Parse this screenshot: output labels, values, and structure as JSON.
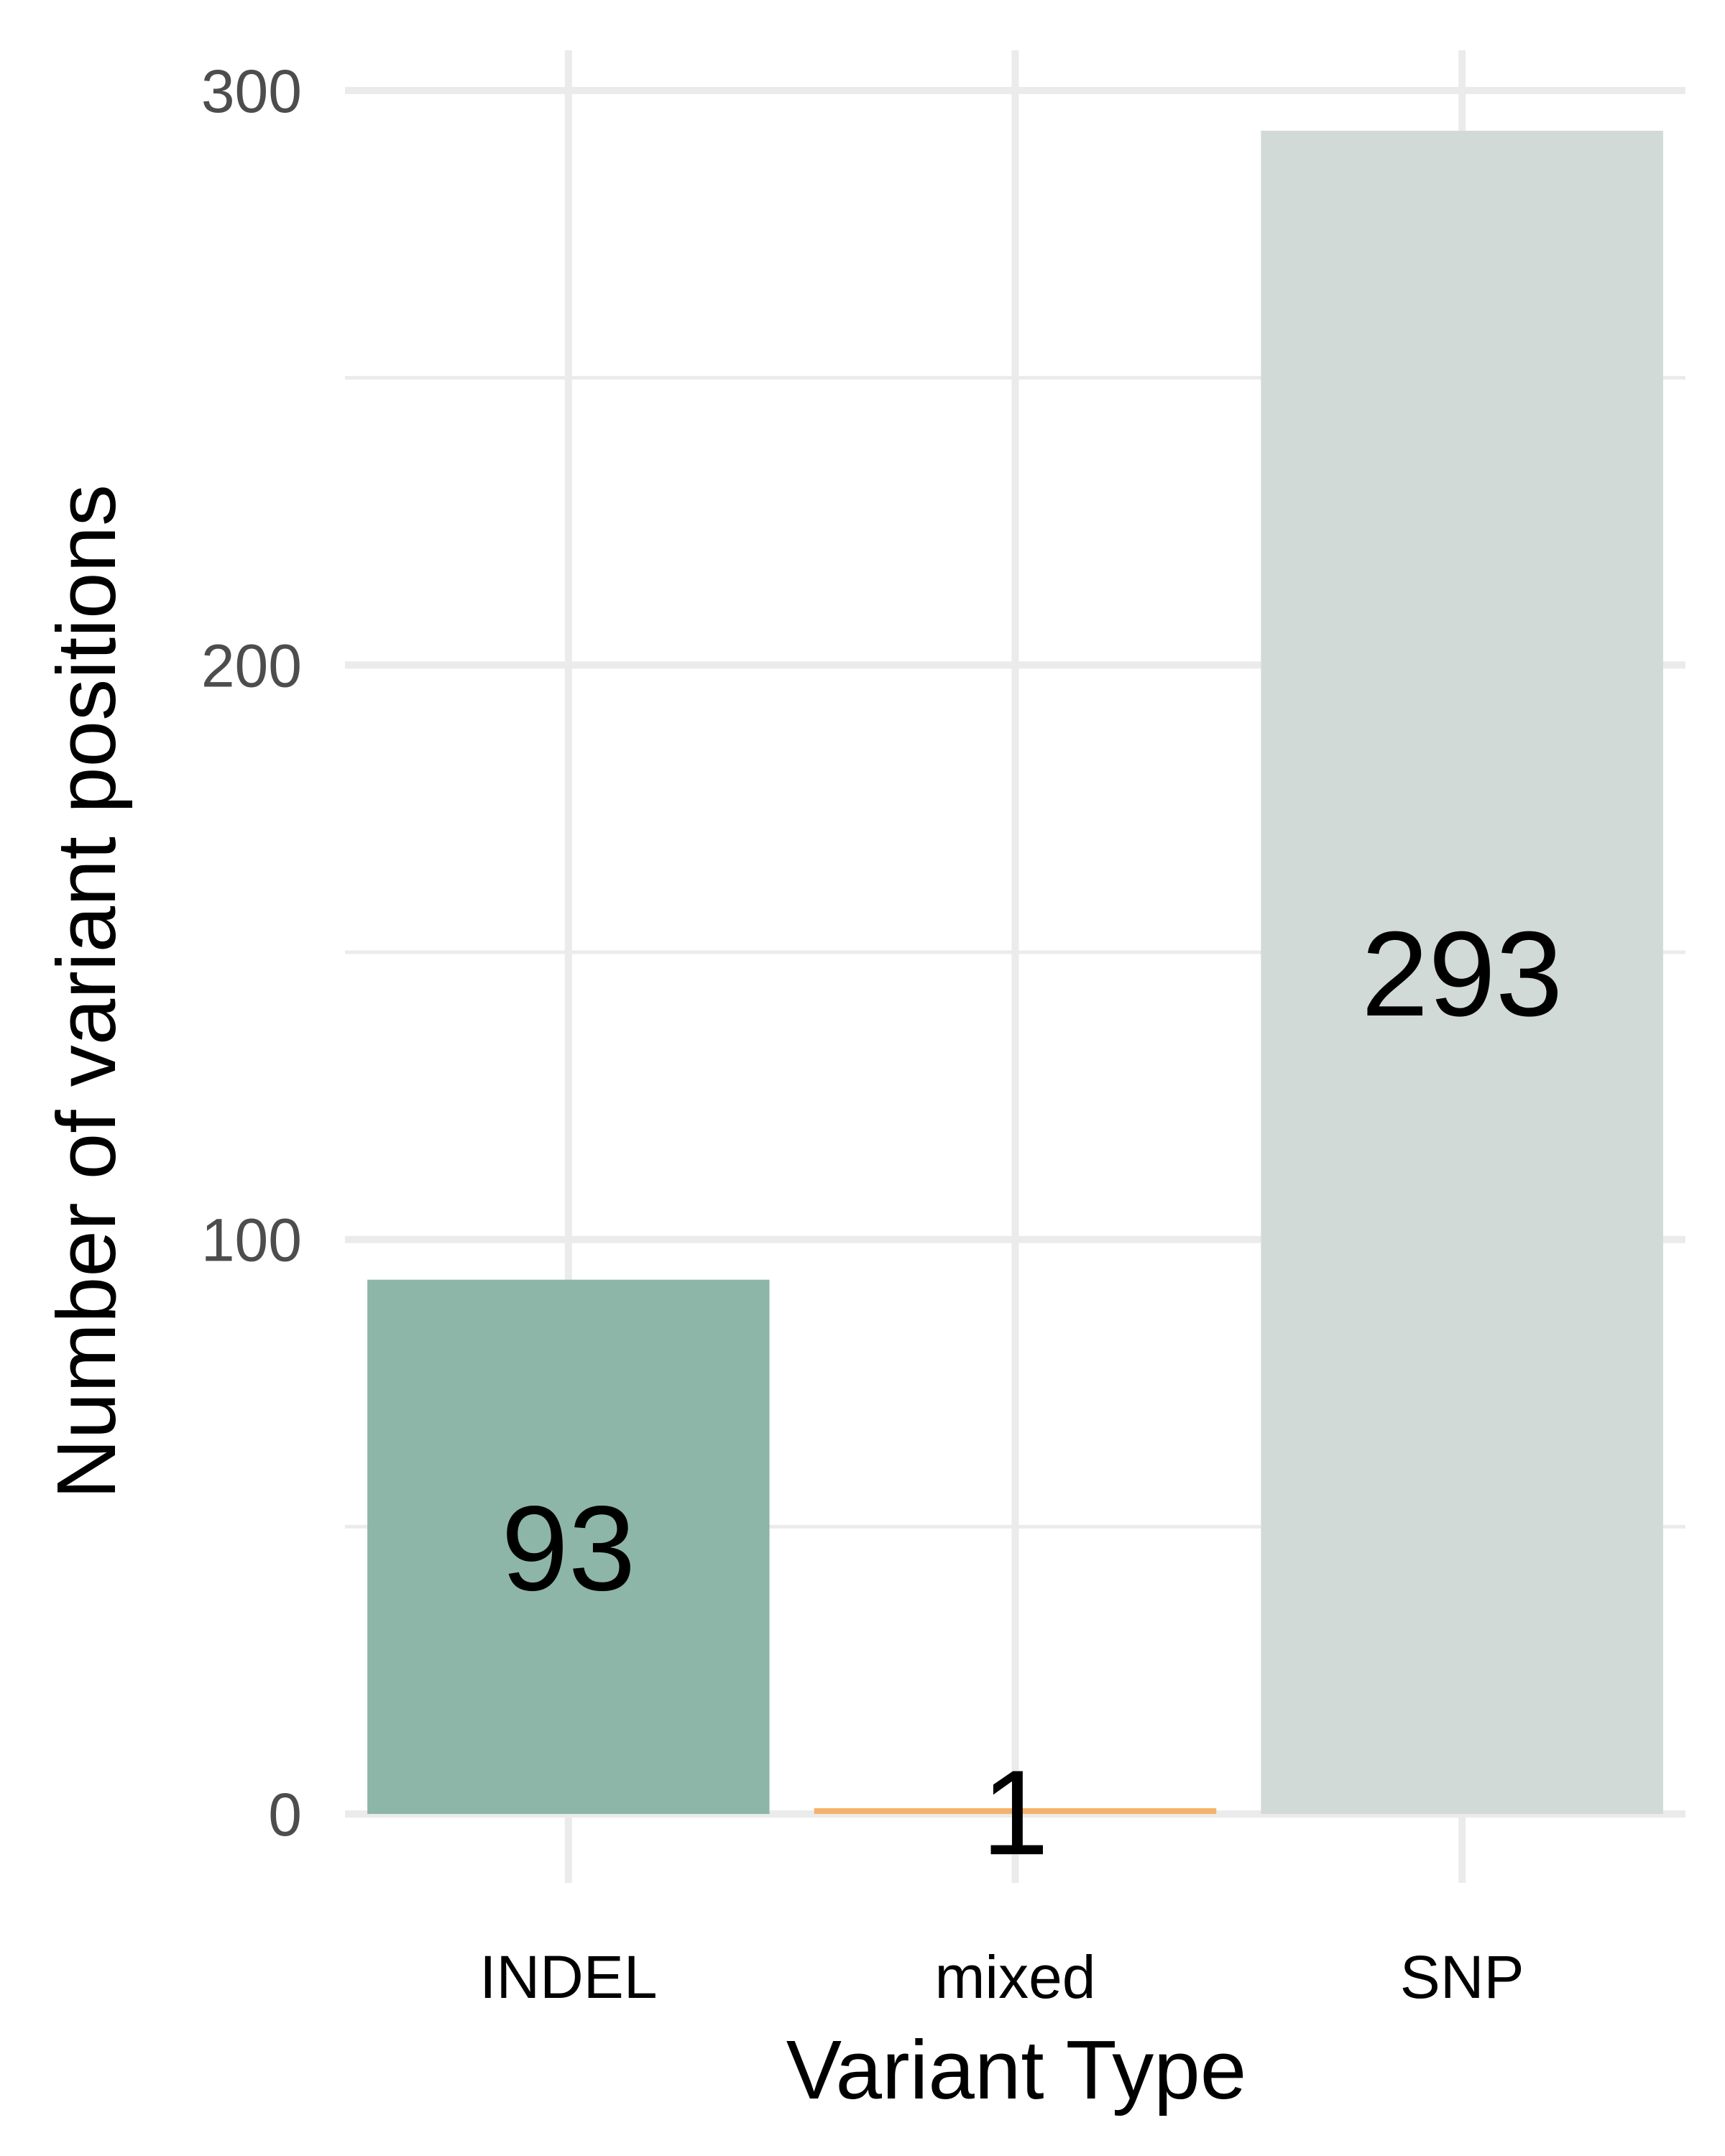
{
  "chart_data": {
    "type": "bar",
    "categories": [
      "INDEL",
      "mixed",
      "SNP"
    ],
    "values": [
      93,
      1,
      293
    ],
    "data_labels": [
      "93",
      "1",
      "293"
    ],
    "colors": [
      "#8db6a8",
      "#f6b26b",
      "#d1dad7"
    ],
    "xlabel": "Variant Type",
    "ylabel": "Number of variant positions",
    "ylim": [
      -12,
      307
    ],
    "yticks": [
      0,
      100,
      200,
      300
    ],
    "ytick_labels": [
      "0",
      "100",
      "200",
      "300"
    ],
    "minor_yticks": [
      50,
      150,
      250
    ],
    "grid": true,
    "legend": "none"
  }
}
